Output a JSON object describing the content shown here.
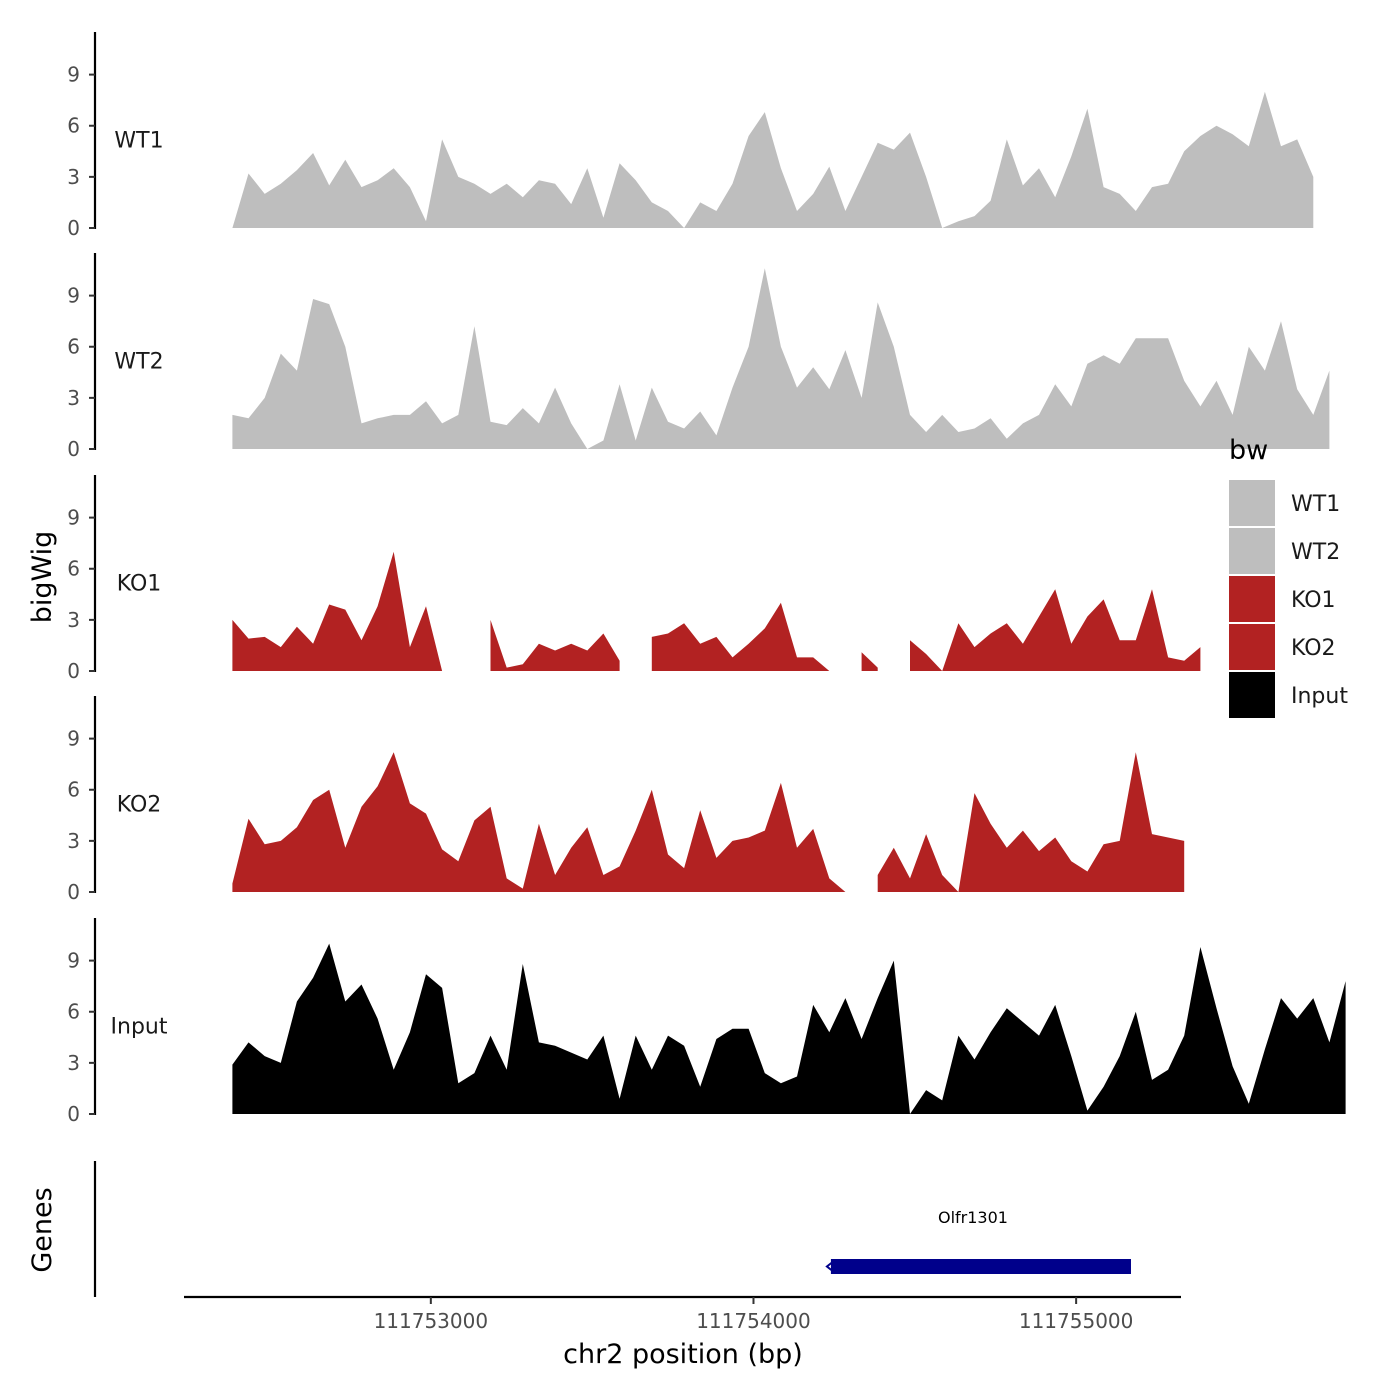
{
  "chart_data": {
    "type": "area",
    "title": "",
    "xlabel": "chr2 position (bp)",
    "ylabel": "bigWig",
    "genes_label": "Genes",
    "xlim": [
      111752235,
      111755325
    ],
    "x_ticks": [
      111753000,
      111754000,
      111755000
    ],
    "x_tick_labels": [
      "111753000",
      "111754000",
      "111755000"
    ],
    "ylim": [
      0,
      11.5
    ],
    "y_ticks": [
      0,
      3,
      6,
      9
    ],
    "y_tick_labels": [
      "0",
      "3",
      "6",
      "9"
    ],
    "grid": false,
    "legend_title": "bw",
    "legend_position": "right",
    "legend": [
      {
        "label": "WT1",
        "color": "#bebebe"
      },
      {
        "label": "WT2",
        "color": "#bebebe"
      },
      {
        "label": "KO1",
        "color": "#b22222"
      },
      {
        "label": "KO2",
        "color": "#b22222"
      },
      {
        "label": "Input",
        "color": "#000000"
      }
    ],
    "x_step_bp": 50,
    "x_start": 111752385,
    "series": [
      {
        "name": "WT1",
        "color": "#bebebe",
        "values": [
          0,
          3.2,
          2.0,
          2.6,
          3.4,
          4.4,
          2.5,
          4.0,
          2.4,
          2.8,
          3.5,
          2.4,
          0.4,
          5.2,
          3.0,
          2.6,
          2.0,
          2.6,
          1.8,
          2.8,
          2.6,
          1.4,
          3.5,
          0.6,
          3.8,
          2.8,
          1.5,
          1.0,
          0.0,
          1.5,
          1.0,
          2.6,
          5.4,
          6.8,
          3.5,
          1.0,
          2.0,
          3.6,
          1.0,
          3.0,
          5.0,
          4.6,
          5.6,
          3.0,
          0.0,
          0.4,
          0.7,
          1.6,
          5.2,
          2.5,
          3.5,
          1.8,
          4.2,
          7.0,
          2.4,
          2.0,
          1.0,
          2.4,
          2.6,
          4.5,
          5.4,
          6.0,
          5.5,
          4.8,
          8.0,
          4.8,
          5.2,
          3.0
        ]
      },
      {
        "name": "WT2",
        "color": "#bebebe",
        "values": [
          2.0,
          1.8,
          3.0,
          5.6,
          4.6,
          8.8,
          8.5,
          6.0,
          1.5,
          1.8,
          2.0,
          2.0,
          2.8,
          1.5,
          2.0,
          7.2,
          1.6,
          1.4,
          2.4,
          1.5,
          3.6,
          1.5,
          0.0,
          0.5,
          3.8,
          0.5,
          3.6,
          1.6,
          1.2,
          2.2,
          0.8,
          3.6,
          6.0,
          10.6,
          6.0,
          3.6,
          4.8,
          3.5,
          5.8,
          3.0,
          8.6,
          6.0,
          2.0,
          1.0,
          2.0,
          1.0,
          1.2,
          1.8,
          0.6,
          1.5,
          2.0,
          3.8,
          2.5,
          5.0,
          5.5,
          5.0,
          6.5,
          6.5,
          6.5,
          4.0,
          2.5,
          4.0,
          2.0,
          6.0,
          4.6,
          7.5,
          3.5,
          2.0,
          4.6
        ]
      },
      {
        "name": "KO1",
        "color": "#b22222",
        "values": [
          3.0,
          1.9,
          2.0,
          1.4,
          2.6,
          1.6,
          3.9,
          3.6,
          1.8,
          3.8,
          7.0,
          1.4,
          3.8,
          0.0,
          null,
          null,
          3.0,
          0.2,
          0.4,
          1.6,
          1.2,
          1.6,
          1.2,
          2.2,
          0.6,
          null,
          2.0,
          2.2,
          2.8,
          1.6,
          2.0,
          0.8,
          1.6,
          2.5,
          4.0,
          0.8,
          0.8,
          0.0,
          null,
          1.1,
          0.2,
          null,
          1.8,
          1.0,
          0.0,
          2.8,
          1.4,
          2.2,
          2.8,
          1.6,
          3.2,
          4.8,
          1.6,
          3.2,
          4.2,
          1.8,
          1.8,
          4.8,
          0.8,
          0.6,
          1.4
        ]
      },
      {
        "name": "KO2",
        "color": "#b22222",
        "values": [
          0.5,
          4.3,
          2.8,
          3.0,
          3.8,
          5.4,
          6.0,
          2.6,
          5.0,
          6.2,
          8.2,
          5.2,
          4.6,
          2.5,
          1.8,
          4.2,
          5.0,
          0.8,
          0.2,
          4.0,
          1.0,
          2.6,
          3.8,
          1.0,
          1.5,
          3.6,
          6.0,
          2.2,
          1.4,
          4.8,
          2.0,
          3.0,
          3.2,
          3.6,
          6.4,
          2.6,
          3.7,
          0.8,
          0.0,
          null,
          1.0,
          2.6,
          0.8,
          3.4,
          1.0,
          0.0,
          5.8,
          4.0,
          2.6,
          3.6,
          2.4,
          3.2,
          1.8,
          1.2,
          2.8,
          3.0,
          8.2,
          3.4,
          3.2,
          3.0
        ]
      },
      {
        "name": "Input",
        "color": "#000000",
        "values": [
          2.9,
          4.2,
          3.4,
          3.0,
          6.6,
          8.0,
          10.0,
          6.6,
          7.6,
          5.6,
          2.6,
          4.8,
          8.2,
          7.4,
          1.8,
          2.4,
          4.6,
          2.6,
          8.8,
          4.2,
          4.0,
          3.6,
          3.2,
          4.6,
          0.9,
          4.6,
          2.6,
          4.6,
          4.0,
          1.6,
          4.4,
          5.0,
          5.0,
          2.4,
          1.8,
          2.2,
          6.4,
          4.8,
          6.8,
          4.4,
          6.8,
          9.0,
          0.0,
          1.4,
          0.8,
          4.6,
          3.2,
          4.8,
          6.2,
          5.4,
          4.6,
          6.4,
          3.4,
          0.2,
          1.6,
          3.4,
          6.0,
          2.0,
          2.6,
          4.6,
          9.8,
          6.2,
          2.8,
          0.6,
          3.8,
          6.8,
          5.6,
          6.8,
          4.2,
          7.8
        ]
      }
    ],
    "genes": [
      {
        "name": "Olfr1301",
        "start": 111754240,
        "end": 111755170,
        "strand": "-",
        "color": "#00008b"
      }
    ]
  }
}
